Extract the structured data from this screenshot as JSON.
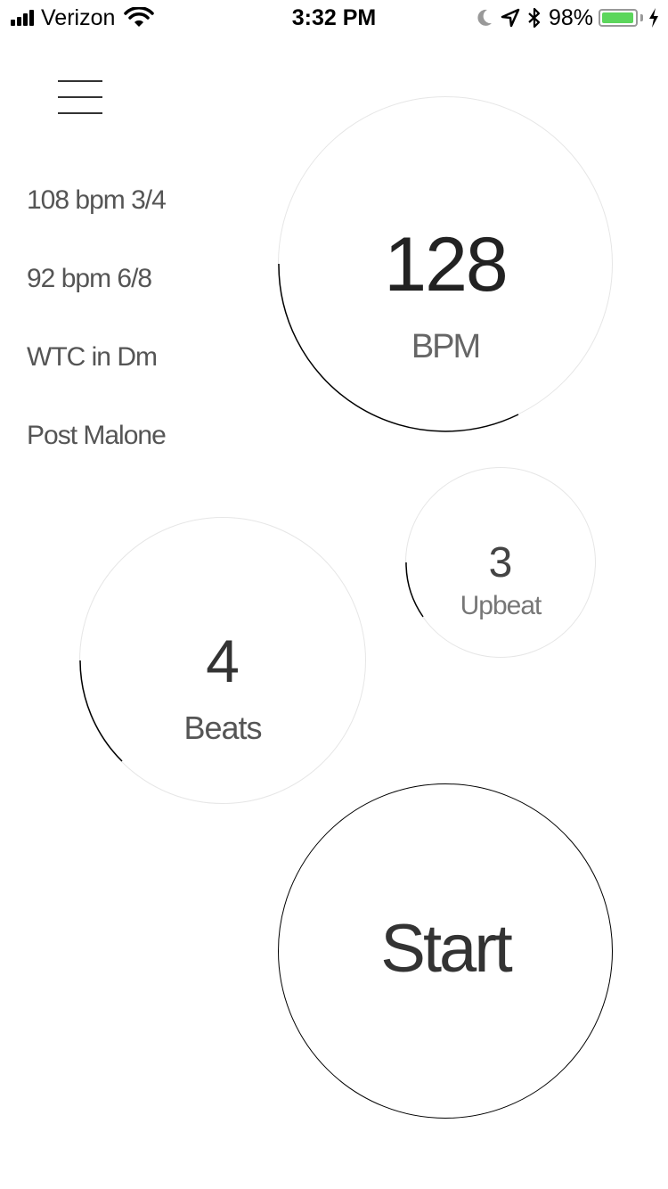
{
  "status_bar": {
    "carrier": "Verizon",
    "time": "3:32 PM",
    "battery_percent": "98%",
    "battery_level": 0.98,
    "battery_color": "#5cd65c",
    "icons": [
      "signal-icon",
      "wifi-icon",
      "moon-icon",
      "location-arrow-icon",
      "bluetooth-icon",
      "battery-icon",
      "charging-bolt-icon"
    ]
  },
  "menu": {
    "icon": "hamburger-menu-icon"
  },
  "presets": [
    "108 bpm 3/4",
    "92 bpm 6/8",
    "WTC in Dm",
    "Post Malone"
  ],
  "tempo": {
    "value": "128",
    "label": "BPM"
  },
  "upbeat": {
    "value": "3",
    "label": "Upbeat"
  },
  "beats": {
    "value": "4",
    "label": "Beats"
  },
  "start": {
    "label": "Start"
  },
  "colors": {
    "background": "#ffffff",
    "dial_ring": "#e6e6e6",
    "dial_arc": "#000000"
  }
}
